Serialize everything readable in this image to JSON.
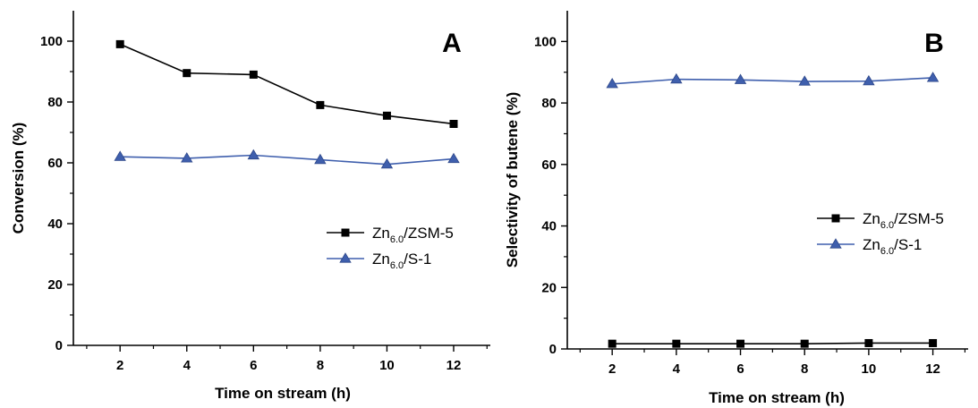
{
  "chart_data": [
    {
      "type": "line",
      "panel_label": "A",
      "xlabel": "Time on stream (h)",
      "ylabel": "Conversion (%)",
      "x": [
        2,
        4,
        6,
        8,
        10,
        12
      ],
      "xlim": [
        0.6,
        13.1
      ],
      "ylim": [
        0,
        110
      ],
      "xticks": [
        2,
        4,
        6,
        8,
        10,
        12
      ],
      "yticks": [
        0,
        20,
        40,
        60,
        80,
        100
      ],
      "grid": false,
      "legend_position": "center-right",
      "series": [
        {
          "name_main": "Zn",
          "name_sub": "6.0",
          "name_rest": "/ZSM-5",
          "marker": "square",
          "color": "#000000",
          "values": [
            99.0,
            89.5,
            89.0,
            79.0,
            75.5,
            72.8
          ]
        },
        {
          "name_main": "Zn",
          "name_sub": "6.0",
          "name_rest": "/S-1",
          "marker": "triangle",
          "color": "#3f5fad",
          "values": [
            62.0,
            61.5,
            62.5,
            61.0,
            59.5,
            61.3
          ]
        }
      ]
    },
    {
      "type": "line",
      "panel_label": "B",
      "xlabel": "Time on stream (h)",
      "ylabel": "Selectivity of butene (%)",
      "x": [
        2,
        4,
        6,
        8,
        10,
        12
      ],
      "xlim": [
        0.6,
        13.1
      ],
      "ylim": [
        0,
        110
      ],
      "xticks": [
        2,
        4,
        6,
        8,
        10,
        12
      ],
      "yticks": [
        0,
        20,
        40,
        60,
        80,
        100
      ],
      "grid": false,
      "legend_position": "center-right",
      "series": [
        {
          "name_main": "Zn",
          "name_sub": "6.0",
          "name_rest": "/ZSM-5",
          "marker": "square",
          "color": "#000000",
          "values": [
            1.7,
            1.7,
            1.7,
            1.7,
            1.9,
            1.9
          ]
        },
        {
          "name_main": "Zn",
          "name_sub": "6.0",
          "name_rest": "/S-1",
          "marker": "triangle",
          "color": "#3f5fad",
          "values": [
            86.2,
            87.7,
            87.5,
            87.0,
            87.1,
            88.2
          ]
        }
      ]
    }
  ]
}
